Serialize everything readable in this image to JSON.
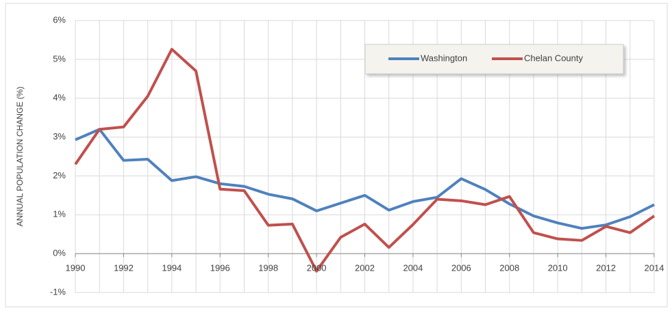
{
  "chart_data": {
    "type": "line",
    "y_label": "ANNUAL POPULATION CHANGE (%)",
    "x": [
      1990,
      1991,
      1992,
      1993,
      1994,
      1995,
      1996,
      1997,
      1998,
      1999,
      2000,
      2001,
      2002,
      2003,
      2004,
      2005,
      2006,
      2007,
      2008,
      2009,
      2010,
      2011,
      2012,
      2013,
      2014
    ],
    "series": [
      {
        "name": "Washington",
        "color": "#4f81bd",
        "values": [
          2.93,
          3.2,
          2.4,
          2.43,
          1.88,
          1.98,
          1.8,
          1.73,
          1.53,
          1.41,
          1.1,
          1.3,
          1.5,
          1.12,
          1.34,
          1.45,
          1.93,
          1.65,
          1.28,
          0.97,
          0.79,
          0.65,
          0.74,
          0.95,
          1.26
        ]
      },
      {
        "name": "Chelan County",
        "color": "#c0504d",
        "values": [
          2.3,
          3.2,
          3.26,
          4.05,
          5.26,
          4.7,
          1.66,
          1.62,
          0.73,
          0.76,
          -0.45,
          0.42,
          0.76,
          0.16,
          0.75,
          1.4,
          1.36,
          1.26,
          1.47,
          0.54,
          0.38,
          0.34,
          0.7,
          0.54,
          0.97
        ]
      }
    ],
    "xlim": [
      1990,
      2014
    ],
    "xticks": [
      1990,
      1992,
      1994,
      1996,
      1998,
      2000,
      2002,
      2004,
      2006,
      2008,
      2010,
      2012,
      2014
    ],
    "ylim": [
      -1,
      6
    ],
    "yticks": [
      {
        "value": -1,
        "label": "-1%"
      },
      {
        "value": 0,
        "label": "0%"
      },
      {
        "value": 1,
        "label": "1%"
      },
      {
        "value": 2,
        "label": "2%"
      },
      {
        "value": 3,
        "label": "3%"
      },
      {
        "value": 4,
        "label": "4%"
      },
      {
        "value": 5,
        "label": "5%"
      },
      {
        "value": 6,
        "label": "6%"
      }
    ],
    "grid": true
  }
}
